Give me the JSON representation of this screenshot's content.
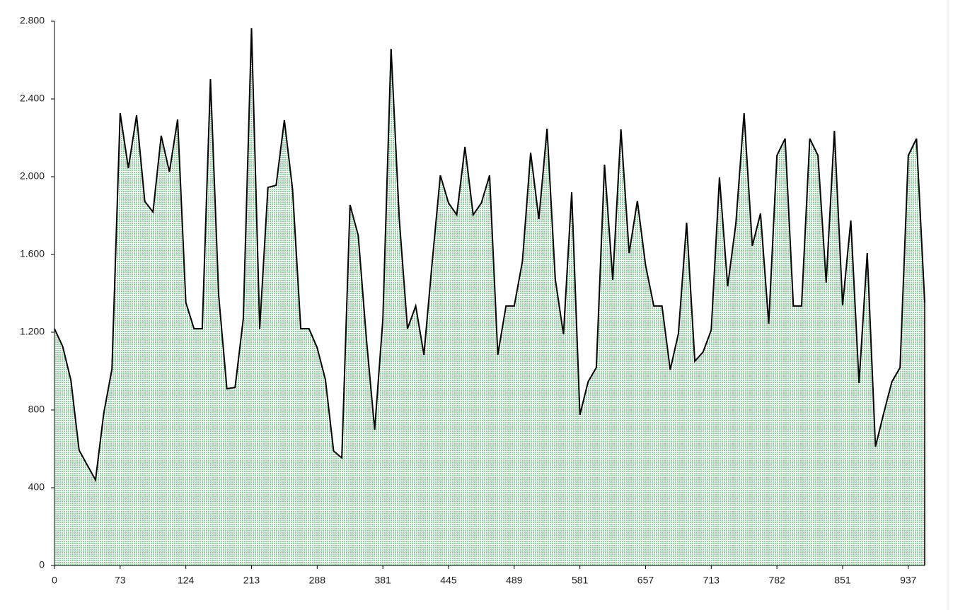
{
  "chart_data": {
    "type": "area",
    "color": "#bfe8c8",
    "line_color": "#000000",
    "categories": [
      "0",
      null,
      null,
      null,
      null,
      null,
      null,
      null,
      "73",
      null,
      null,
      null,
      null,
      null,
      null,
      null,
      "124",
      null,
      null,
      null,
      null,
      null,
      null,
      null,
      "213",
      null,
      null,
      null,
      null,
      null,
      null,
      null,
      "288",
      null,
      null,
      null,
      null,
      null,
      null,
      null,
      "381",
      null,
      null,
      null,
      null,
      null,
      null,
      null,
      "445",
      null,
      null,
      null,
      null,
      null,
      null,
      null,
      "489",
      null,
      null,
      null,
      null,
      null,
      null,
      null,
      "581",
      null,
      null,
      null,
      null,
      null,
      null,
      null,
      "657",
      null,
      null,
      null,
      null,
      null,
      null,
      null,
      "713",
      null,
      null,
      null,
      null,
      null,
      null,
      null,
      "782",
      null,
      null,
      null,
      null,
      null,
      null,
      null,
      "851",
      null,
      null,
      null,
      null,
      null,
      null,
      null,
      "937",
      null,
      null
    ],
    "values": [
      1218,
      1127,
      953,
      593,
      516,
      440,
      782,
      1011,
      2327,
      2044,
      2316,
      1873,
      1818,
      2211,
      2025,
      2295,
      1353,
      1218,
      1218,
      2502,
      1389,
      909,
      916,
      1269,
      2764,
      1218,
      1945,
      1956,
      2291,
      1935,
      1218,
      1218,
      1120,
      956,
      589,
      553,
      1855,
      1698,
      1164,
      698,
      1265,
      2658,
      1782,
      1218,
      1335,
      1084,
      1556,
      2007,
      1865,
      1804,
      2153,
      1804,
      1865,
      2007,
      1084,
      1335,
      1335,
      1564,
      2124,
      1782,
      2247,
      1473,
      1189,
      1920,
      775,
      945,
      1018,
      2062,
      1469,
      2244,
      1607,
      1876,
      1545,
      1335,
      1335,
      1007,
      1193,
      1764,
      1051,
      1098,
      1211,
      1996,
      1436,
      1760,
      2327,
      1644,
      1811,
      1244,
      2109,
      2196,
      1335,
      1335,
      2196,
      2109,
      1455,
      2236,
      1338,
      1775,
      938,
      1607,
      611,
      782,
      945,
      1018,
      2109,
      2196,
      1353
    ],
    "ylim": [
      0,
      2800
    ],
    "yticks": [
      0,
      400,
      800,
      {
        "value": 1200,
        "label": "1.200"
      },
      {
        "value": 1600,
        "label": "1.600"
      },
      {
        "value": 2000,
        "label": "2.000"
      },
      {
        "value": 2400,
        "label": "2.400"
      },
      {
        "value": 2800,
        "label": "2.800"
      }
    ]
  }
}
